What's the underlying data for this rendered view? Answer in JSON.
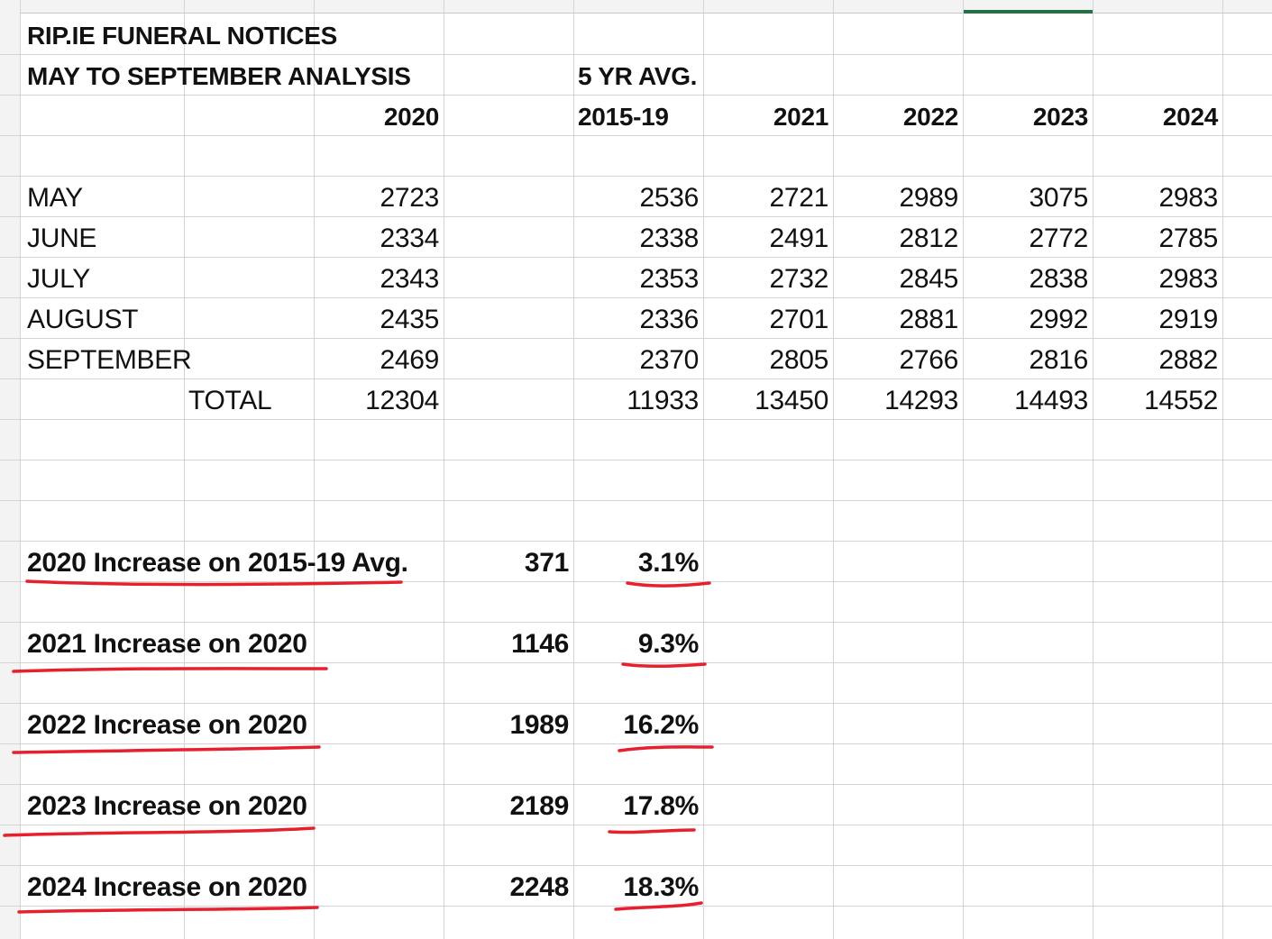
{
  "sheet": {
    "title_line1": "RIP.IE FUNERAL NOTICES",
    "title_line2": "MAY TO SEPTEMBER ANALYSIS",
    "avg_header_line1": "5 YR AVG.",
    "col_headers": [
      "2020",
      "2015-19",
      "2021",
      "2022",
      "2023",
      "2024"
    ],
    "rows": [
      {
        "label": "MAY",
        "values": [
          "2723",
          "2536",
          "2721",
          "2989",
          "3075",
          "2983"
        ]
      },
      {
        "label": "JUNE",
        "values": [
          "2334",
          "2338",
          "2491",
          "2812",
          "2772",
          "2785"
        ]
      },
      {
        "label": "JULY",
        "values": [
          "2343",
          "2353",
          "2732",
          "2845",
          "2838",
          "2983"
        ]
      },
      {
        "label": "AUGUST",
        "values": [
          "2435",
          "2336",
          "2701",
          "2881",
          "2992",
          "2919"
        ]
      },
      {
        "label": "SEPTEMBER",
        "values": [
          "2469",
          "2370",
          "2805",
          "2766",
          "2816",
          "2882"
        ]
      }
    ],
    "total": {
      "label": "TOTAL",
      "values": [
        "12304",
        "11933",
        "13450",
        "14293",
        "14493",
        "14552"
      ]
    },
    "increases": [
      {
        "label": "2020 Increase on 2015-19 Avg.",
        "amount": "371",
        "percent": "3.1%"
      },
      {
        "label": "2021 Increase on 2020",
        "amount": "1146",
        "percent": "9.3%"
      },
      {
        "label": "2022 Increase on 2020",
        "amount": "1989",
        "percent": "16.2%"
      },
      {
        "label": "2023 Increase on 2020",
        "amount": "2189",
        "percent": "17.8%"
      },
      {
        "label": "2024 Increase on 2020",
        "amount": "2248",
        "percent": "18.3%"
      }
    ],
    "annotation_color": "#e8202e",
    "selection_color": "#217346"
  }
}
